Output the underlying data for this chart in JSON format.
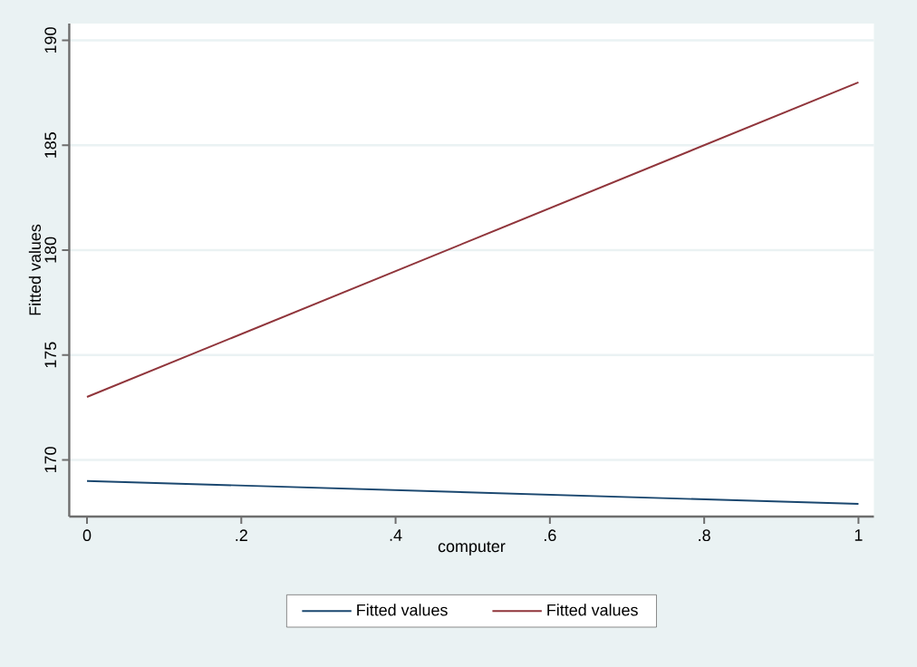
{
  "chart_data": {
    "type": "line",
    "xlabel": "computer",
    "ylabel": "Fitted values",
    "x": [
      0,
      1
    ],
    "series": [
      {
        "name": "Fitted values",
        "color": "#1a476f",
        "values": [
          169.0,
          167.9
        ]
      },
      {
        "name": "Fitted values",
        "color": "#90353b",
        "values": [
          173.0,
          188.0
        ]
      }
    ],
    "xlim": [
      -0.023,
      1.02
    ],
    "ylim": [
      167.3,
      190.8
    ],
    "xticks": [
      0,
      {
        "value": 0.2,
        "label": ".2"
      },
      {
        "value": 0.4,
        "label": ".4"
      },
      {
        "value": 0.6,
        "label": ".6"
      },
      {
        "value": 0.8,
        "label": ".8"
      },
      1
    ],
    "yticks": [
      170,
      175,
      180,
      185,
      190
    ],
    "grid": "y",
    "legend": "bottom",
    "marker": "none",
    "line_style": "solid"
  }
}
